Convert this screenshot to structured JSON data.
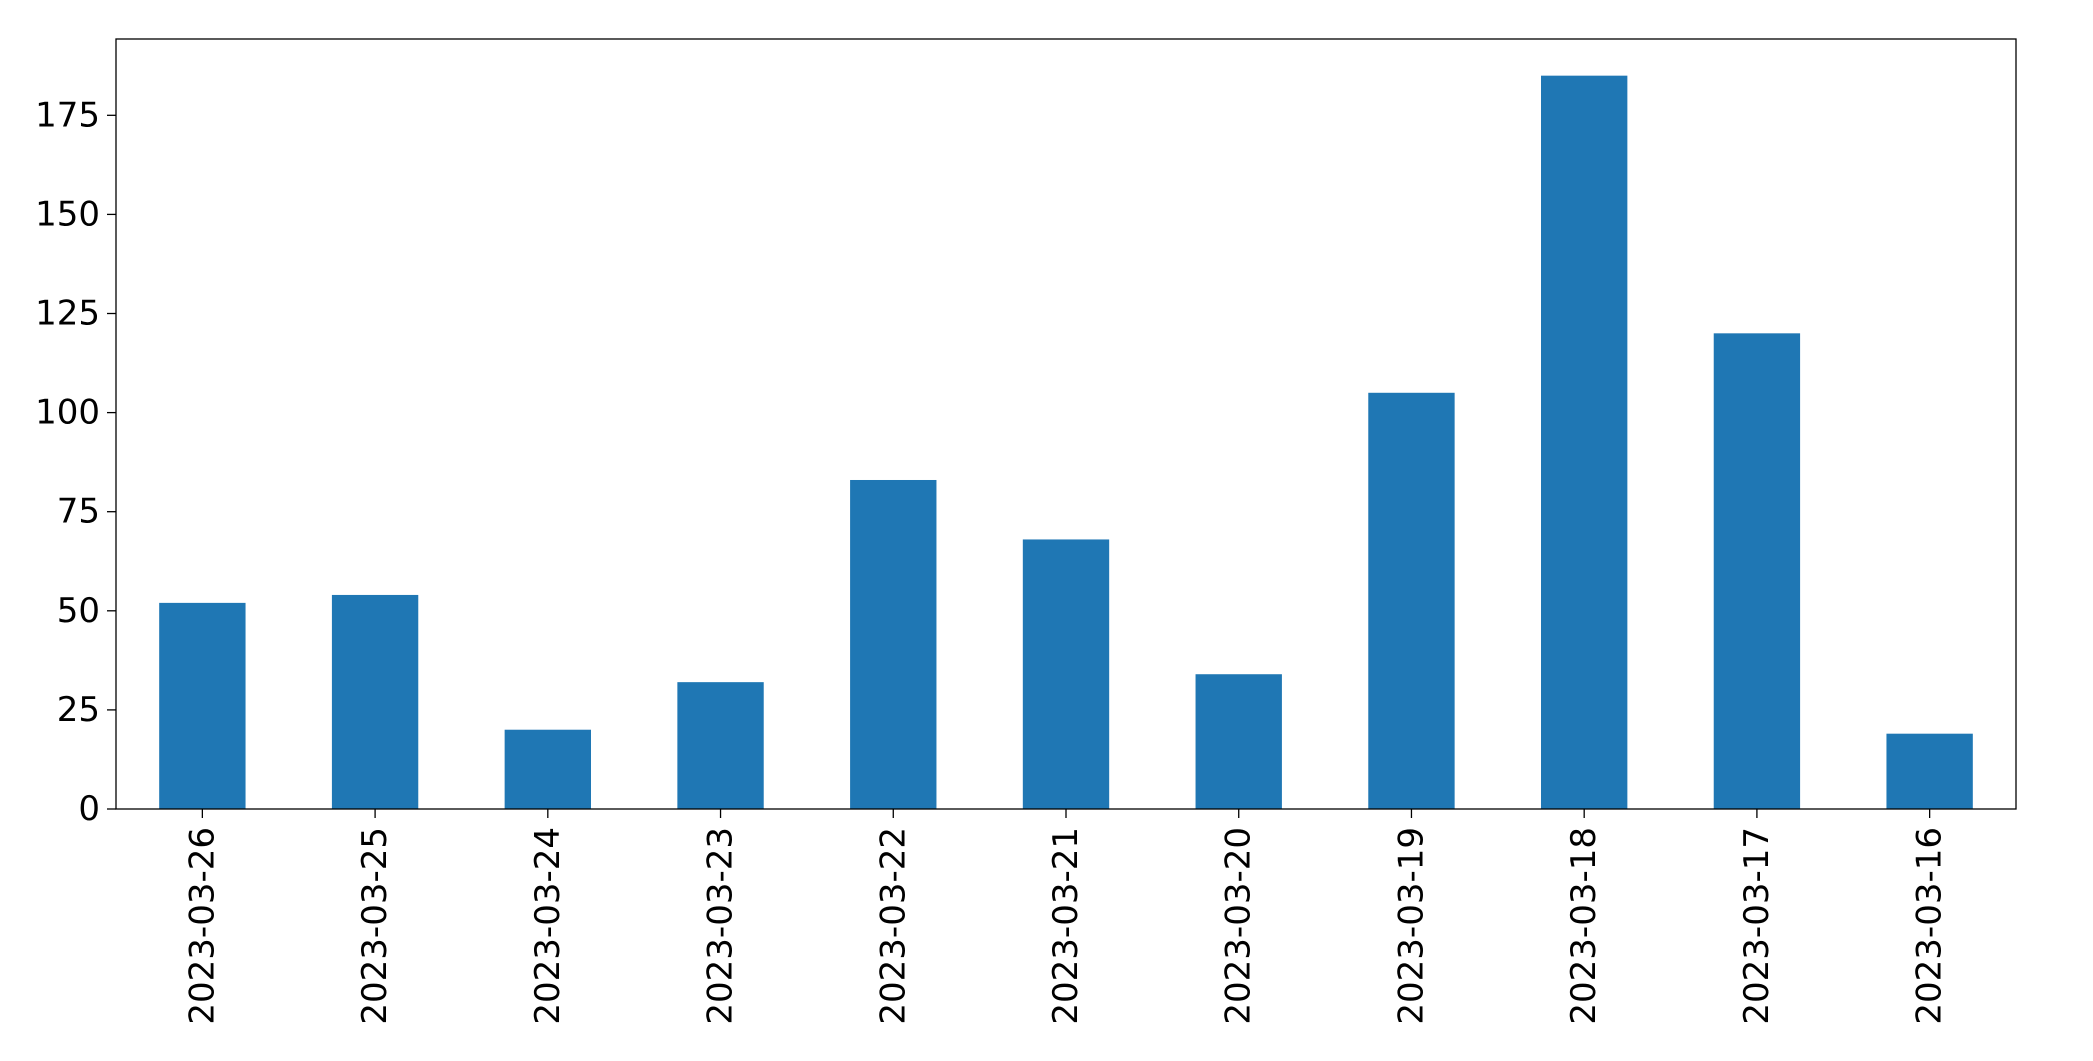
{
  "chart_data": {
    "type": "bar",
    "categories": [
      "2023-03-26",
      "2023-03-25",
      "2023-03-24",
      "2023-03-23",
      "2023-03-22",
      "2023-03-21",
      "2023-03-20",
      "2023-03-19",
      "2023-03-18",
      "2023-03-17",
      "2023-03-16"
    ],
    "values": [
      52,
      54,
      20,
      32,
      83,
      68,
      34,
      105,
      185,
      120,
      19
    ],
    "color": "#1f77b4",
    "ylim": [
      0,
      194.25
    ],
    "yticks": [
      0,
      25,
      50,
      75,
      100,
      125,
      150,
      175
    ],
    "grid": false
  }
}
